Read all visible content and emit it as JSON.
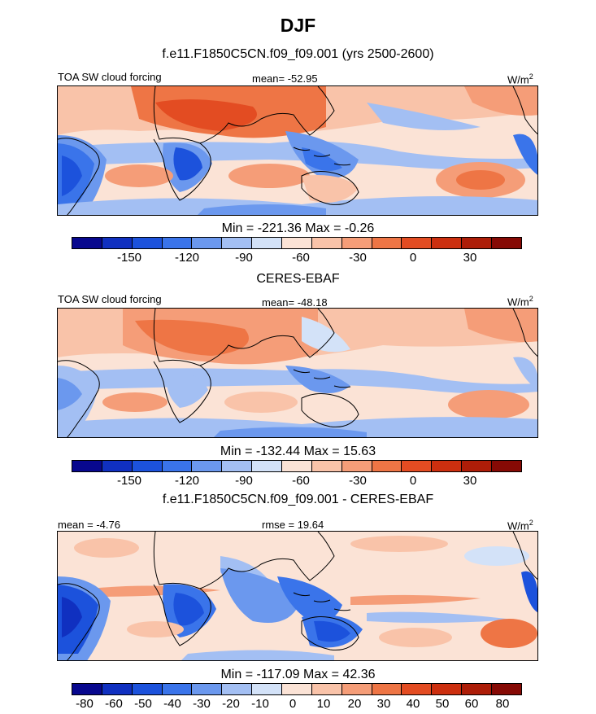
{
  "title": "DJF",
  "panels": [
    {
      "title": "f.e11.F1850C5CN.f09_f09.001 (yrs 2500-2600)",
      "left_label": "TOA SW cloud forcing",
      "center_label": "mean= -52.95",
      "units": "W/m",
      "units_sup": "2",
      "minmax": "Min = -221.36 Max =  -0.26",
      "ticks": [
        "-150",
        "-120",
        "-90",
        "-60",
        "-30",
        "0",
        "30"
      ]
    },
    {
      "title": "CERES-EBAF",
      "left_label": "TOA SW cloud forcing",
      "center_label": "mean= -48.18",
      "units": "W/m",
      "units_sup": "2",
      "minmax": "Min = -132.44 Max =  15.63",
      "ticks": [
        "-150",
        "-120",
        "-90",
        "-60",
        "-30",
        "0",
        "30"
      ]
    },
    {
      "title": "f.e11.F1850C5CN.f09_f09.001 - CERES-EBAF",
      "left_label": "mean =  -4.76",
      "center_label": "rmse =  19.64",
      "units": "W/m",
      "units_sup": "2",
      "minmax": "Min = -117.09 Max =  42.36",
      "ticks": [
        "-80",
        "-60",
        "-50",
        "-40",
        "-30",
        "-20",
        "-10",
        "0",
        "10",
        "20",
        "30",
        "40",
        "50",
        "60",
        "80"
      ]
    }
  ],
  "colorbar_colors": [
    "#08088e",
    "#1030c0",
    "#1c52dc",
    "#3a74ea",
    "#6b98ee",
    "#a3bff3",
    "#d3e2f8",
    "#fbe3d6",
    "#f9c3a9",
    "#f59d78",
    "#ee7545",
    "#e34c22",
    "#cc2f0f",
    "#ad1d08",
    "#860a05"
  ]
}
